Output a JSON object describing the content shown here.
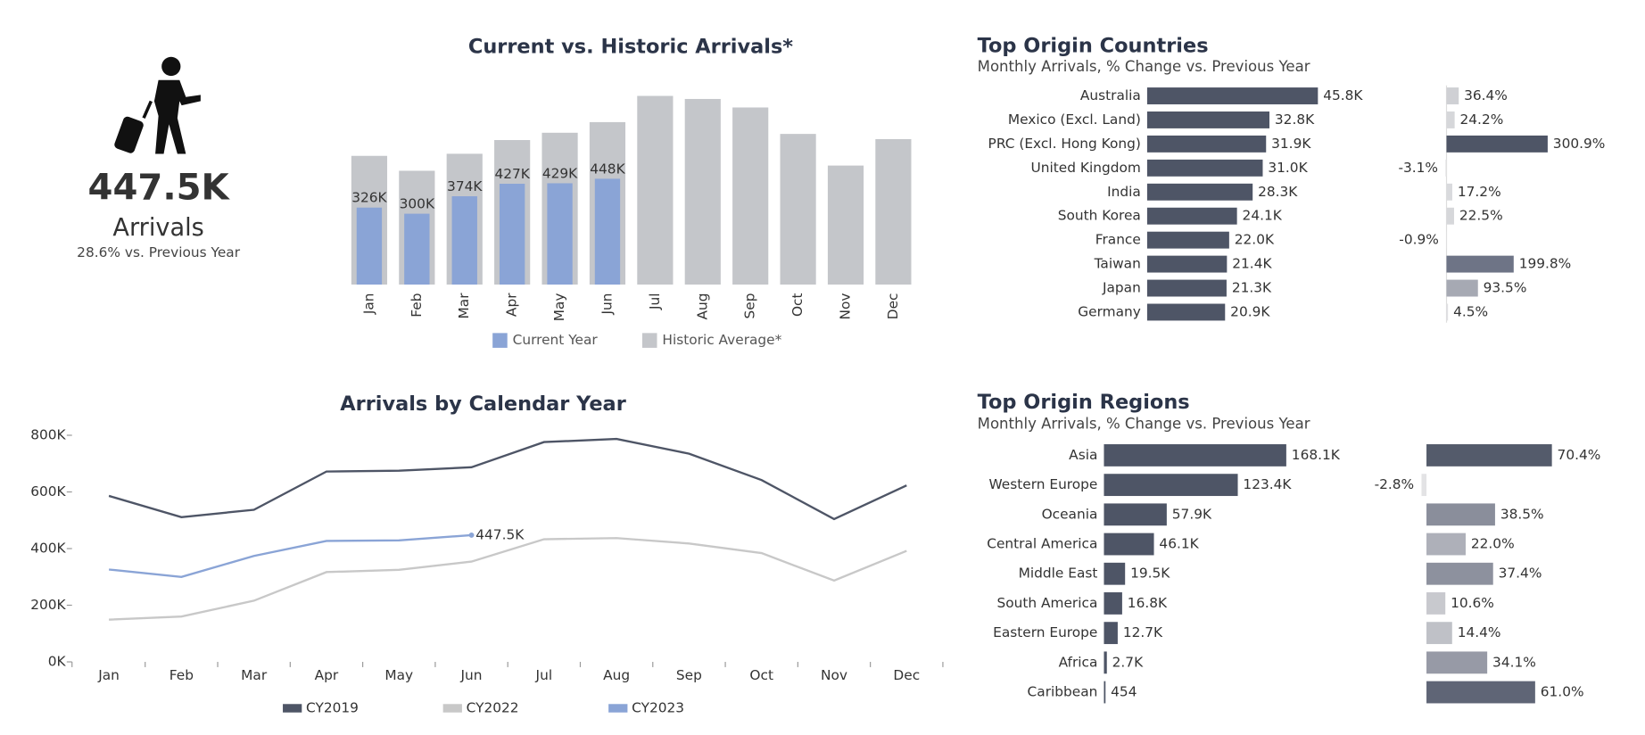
{
  "kpi": {
    "value": "447.5K",
    "label": "Arrivals",
    "note": "28.6% vs. Previous Year"
  },
  "chart_data": [
    {
      "type": "bar",
      "title": "Current vs. Historic Arrivals*",
      "categories": [
        "Jan",
        "Feb",
        "Mar",
        "Apr",
        "May",
        "Jun",
        "Jul",
        "Aug",
        "Sep",
        "Oct",
        "Nov",
        "Dec"
      ],
      "series": [
        {
          "name": "Historic Average*",
          "color": "#c4c6ca",
          "values": [
            545000,
            482000,
            554000,
            612000,
            643000,
            688000,
            799000,
            786000,
            750000,
            638000,
            504000,
            616000
          ]
        },
        {
          "name": "Current Year",
          "color": "#8aa4d6",
          "values": [
            326000,
            300000,
            374000,
            427000,
            429000,
            448000,
            null,
            null,
            null,
            null,
            null,
            null
          ],
          "value_labels": [
            "326K",
            "300K",
            "374K",
            "427K",
            "429K",
            "448K",
            null,
            null,
            null,
            null,
            null,
            null
          ]
        }
      ]
    },
    {
      "type": "line",
      "title": "Arrivals by Calendar Year",
      "categories": [
        "Jan",
        "Feb",
        "Mar",
        "Apr",
        "May",
        "Jun",
        "Jul",
        "Aug",
        "Sep",
        "Oct",
        "Nov",
        "Dec"
      ],
      "ylim": [
        0,
        800000
      ],
      "yticks": [
        {
          "value": 0,
          "label": "0K"
        },
        {
          "value": 200000,
          "label": "200K"
        },
        {
          "value": 400000,
          "label": "400K"
        },
        {
          "value": 600000,
          "label": "600K"
        },
        {
          "value": 800000,
          "label": "800K"
        }
      ],
      "series": [
        {
          "name": "CY2019",
          "color": "#4e5566",
          "values": [
            586000,
            511000,
            537000,
            672000,
            675000,
            687000,
            776000,
            787000,
            735000,
            642000,
            504000,
            623000
          ]
        },
        {
          "name": "CY2022",
          "color": "#c8c8c8",
          "values": [
            149000,
            160000,
            216000,
            317000,
            325000,
            354000,
            433000,
            437000,
            418000,
            384000,
            287000,
            392000
          ]
        },
        {
          "name": "CY2023",
          "color": "#8aa4d6",
          "values": [
            326000,
            300000,
            374000,
            427000,
            429000,
            447500,
            null,
            null,
            null,
            null,
            null,
            null
          ],
          "value_labels": [
            null,
            null,
            null,
            null,
            null,
            "447.5K",
            null,
            null,
            null,
            null,
            null,
            null
          ]
        }
      ]
    },
    {
      "type": "hbar",
      "title": "Top Origin Countries",
      "subtitle": "Monthly Arrivals, % Change vs. Previous Year",
      "categories": [
        "Australia",
        "Mexico (Excl. Land)",
        "PRC (Excl. Hong Kong)",
        "United Kingdom",
        "India",
        "South Korea",
        "France",
        "Taiwan",
        "Japan",
        "Germany"
      ],
      "series": [
        {
          "color": "#4e5566",
          "values": [
            45800,
            32800,
            31900,
            31000,
            28300,
            24100,
            22000,
            21400,
            21300,
            20900
          ],
          "value_labels": [
            "45.8K",
            "32.8K",
            "31.9K",
            "31.0K",
            "28.3K",
            "24.1K",
            "22.0K",
            "21.4K",
            "21.3K",
            "20.9K"
          ]
        },
        {
          "colors": [
            "#cfd0d4",
            "#d6d7da",
            "#4e5566",
            "#e3e3e5",
            "#d9dadd",
            "#d6d7da",
            "#e3e3e5",
            "#6e7486",
            "#a6a9b3",
            "#e0e0e3"
          ],
          "values": [
            36.4,
            24.2,
            300.9,
            -3.1,
            17.2,
            22.5,
            -0.9,
            199.8,
            93.5,
            4.5
          ],
          "value_labels": [
            "36.4%",
            "24.2%",
            "300.9%",
            "-3.1%",
            "17.2%",
            "22.5%",
            "-0.9%",
            "199.8%",
            "93.5%",
            "4.5%"
          ]
        }
      ]
    },
    {
      "type": "hbar",
      "title": "Top Origin Regions",
      "subtitle": "Monthly Arrivals, % Change vs. Previous Year",
      "categories": [
        "Asia",
        "Western Europe",
        "Oceania",
        "Central America",
        "Middle East",
        "South America",
        "Eastern Europe",
        "Africa",
        "Caribbean"
      ],
      "series": [
        {
          "color": "#4e5566",
          "values": [
            168100,
            123400,
            57900,
            46100,
            19500,
            16800,
            12700,
            2700,
            454
          ],
          "value_labels": [
            "168.1K",
            "123.4K",
            "57.9K",
            "46.1K",
            "19.5K",
            "16.8K",
            "12.7K",
            "2.7K",
            "454"
          ]
        },
        {
          "colors": [
            "#545b6b",
            "#e3e3e5",
            "#8a8e9b",
            "#aeb0b9",
            "#8d919e",
            "#c8c9ce",
            "#bfc1c7",
            "#979aa6",
            "#5f6576"
          ],
          "values": [
            70.4,
            -2.8,
            38.5,
            22.0,
            37.4,
            10.6,
            14.4,
            34.1,
            61.0
          ],
          "value_labels": [
            "70.4%",
            "-2.8%",
            "38.5%",
            "22.0%",
            "37.4%",
            "10.6%",
            "14.4%",
            "34.1%",
            "61.0%"
          ]
        }
      ]
    }
  ]
}
